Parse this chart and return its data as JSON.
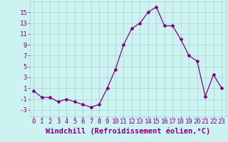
{
  "x": [
    0,
    1,
    2,
    3,
    4,
    5,
    6,
    7,
    8,
    9,
    10,
    11,
    12,
    13,
    14,
    15,
    16,
    17,
    18,
    19,
    20,
    21,
    22,
    23
  ],
  "y": [
    0.5,
    -0.7,
    -0.7,
    -1.5,
    -1.0,
    -1.5,
    -2.0,
    -2.5,
    -2.0,
    1.0,
    4.5,
    9.0,
    12.0,
    13.0,
    15.0,
    16.0,
    12.5,
    12.5,
    10.0,
    7.0,
    6.0,
    -0.5,
    3.5,
    1.0
  ],
  "line_color": "#800080",
  "marker": "D",
  "marker_size": 2,
  "bg_color": "#ccf2f2",
  "grid_color": "#aacccc",
  "xlabel": "Windchill (Refroidissement éolien,°C)",
  "ylabel_ticks": [
    -3,
    -1,
    1,
    3,
    5,
    7,
    9,
    11,
    13,
    15
  ],
  "ylim": [
    -4.2,
    17.0
  ],
  "xlim": [
    -0.5,
    23.5
  ],
  "tick_color": "#800080",
  "label_color": "#800080",
  "font_size": 6.5,
  "xlabel_font_size": 7.5
}
